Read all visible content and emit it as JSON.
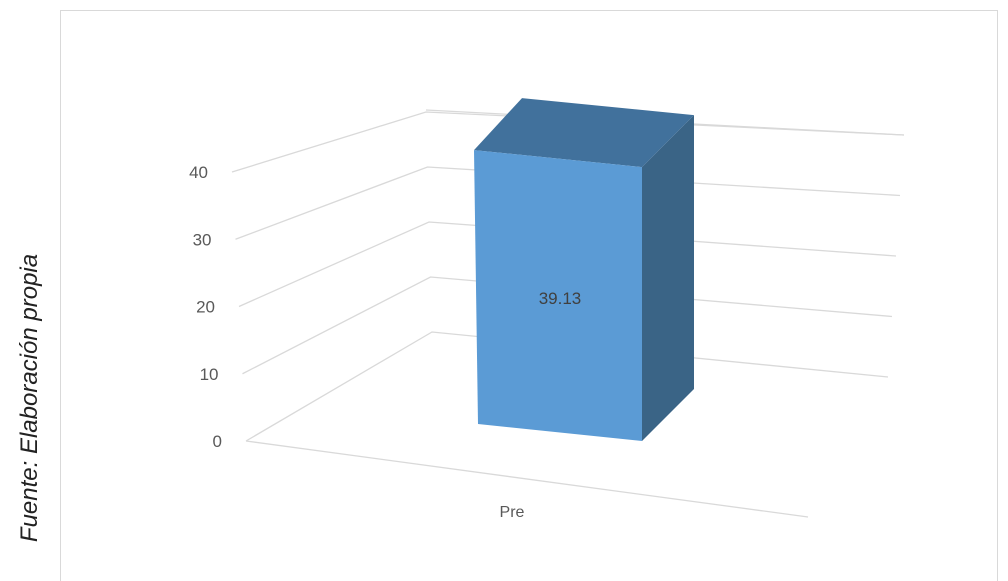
{
  "side_caption": "Fuente: Elaboración propia",
  "chart_data": {
    "type": "bar",
    "categories": [
      "Pre"
    ],
    "values": [
      39.13
    ],
    "data_labels": [
      "39.13"
    ],
    "yticks": [
      "0",
      "10",
      "20",
      "30",
      "40"
    ],
    "ylim": [
      0,
      40
    ],
    "grid": true,
    "style": "3d-column",
    "colors": {
      "front": "#5b9bd5",
      "top": "#41719c",
      "side": "#3a6486",
      "grid": "#d9d9d9",
      "text": "#595959"
    }
  }
}
